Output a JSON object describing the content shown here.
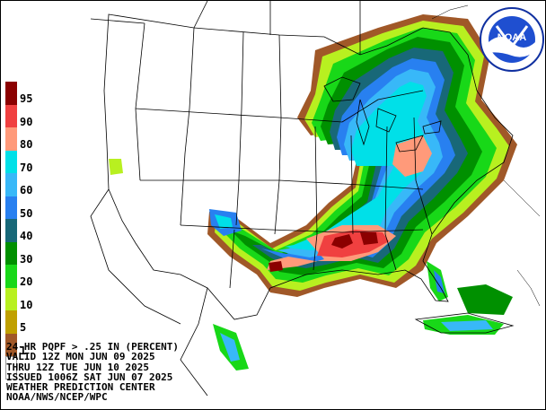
{
  "product": {
    "line1": "24-HR PQPF > .25 IN (PERCENT)",
    "line2": "VALID 12Z MON JUN 09 2025",
    "line3": "THRU 12Z TUE JUN 10 2025",
    "line4": "ISSUED 1006Z SAT JUN 07 2025",
    "line5": "WEATHER PREDICTION CENTER",
    "line6": "NOAA/NWS/NCEP/WPC"
  },
  "legend": [
    {
      "label": "95",
      "color": "#8b0000"
    },
    {
      "label": "90",
      "color": "#f04040"
    },
    {
      "label": "80",
      "color": "#ff9a7a"
    },
    {
      "label": "70",
      "color": "#00e0e8"
    },
    {
      "label": "60",
      "color": "#38b8f8"
    },
    {
      "label": "50",
      "color": "#2880f0"
    },
    {
      "label": "40",
      "color": "#186878"
    },
    {
      "label": "30",
      "color": "#009000"
    },
    {
      "label": "20",
      "color": "#18d818"
    },
    {
      "label": "10",
      "color": "#b8f020"
    },
    {
      "label": "5",
      "color": "#c0a000"
    },
    {
      "label": "1",
      "color": "#a05828"
    },
    {
      "label": "",
      "color": "#ffffff"
    }
  ],
  "logo": {
    "text": "NOAA",
    "icon": "noaa-logo"
  }
}
